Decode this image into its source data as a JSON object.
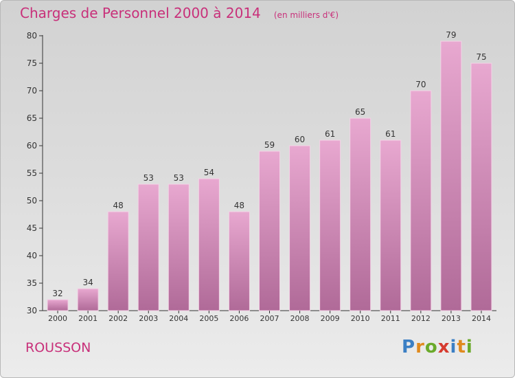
{
  "header": {
    "title": "Charges de Personnel 2000 à 2014",
    "subtitle": "(en milliers d'€)"
  },
  "place_name": "ROUSSON",
  "logo": {
    "text": "Proxiti",
    "letters": [
      {
        "char": "P",
        "color": "#3b7fc4"
      },
      {
        "char": "r",
        "color": "#e08a1e"
      },
      {
        "char": "o",
        "color": "#6aaa2a"
      },
      {
        "char": "x",
        "color": "#d63b2f"
      },
      {
        "char": "i",
        "color": "#3b7fc4"
      },
      {
        "char": "t",
        "color": "#e08a1e"
      },
      {
        "char": "i",
        "color": "#6aaa2a"
      }
    ]
  },
  "colors": {
    "accent": "#c8307a",
    "bar_top": "#e8a8d0",
    "bar_bottom": "#b06a98"
  },
  "chart_data": {
    "type": "bar",
    "title": "Charges de Personnel 2000 à 2014",
    "subtitle": "(en milliers d'€)",
    "categories": [
      "2000",
      "2001",
      "2002",
      "2003",
      "2004",
      "2005",
      "2006",
      "2007",
      "2008",
      "2009",
      "2010",
      "2011",
      "2012",
      "2013",
      "2014"
    ],
    "values": [
      32,
      34,
      48,
      53,
      53,
      54,
      48,
      59,
      60,
      61,
      65,
      61,
      70,
      79,
      75
    ],
    "ylim": [
      30,
      80
    ],
    "yticks": [
      30,
      35,
      40,
      45,
      50,
      55,
      60,
      65,
      70,
      75,
      80
    ],
    "grid": false,
    "data_labels": true
  }
}
